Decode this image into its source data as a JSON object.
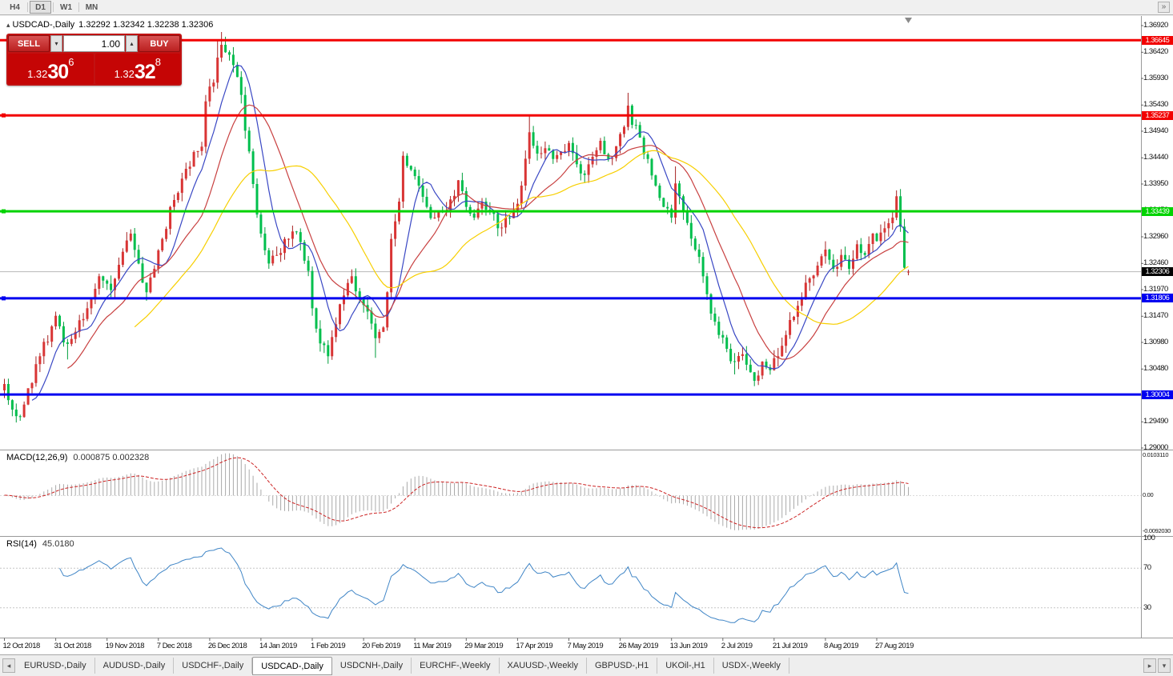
{
  "toolbar": {
    "timeframes": [
      "H4",
      "D1",
      "W1",
      "MN"
    ],
    "active_timeframe": "D1"
  },
  "icons": {
    "triangle_up": "▴",
    "chevron_down": "▾",
    "chevron_up": "▴",
    "arrow_left": "◂",
    "arrow_right": "▸",
    "overflow": "»"
  },
  "trade_panel": {
    "sell_label": "SELL",
    "buy_label": "BUY",
    "volume": "1.00",
    "sell_price": {
      "prefix": "1.32",
      "big": "30",
      "sup": "6"
    },
    "buy_price": {
      "prefix": "1.32",
      "big": "32",
      "sup": "8"
    }
  },
  "tabs": [
    "EURUSD-,Daily",
    "AUDUSD-,Daily",
    "USDCHF-,Daily",
    "USDCAD-,Daily",
    "USDCNH-,Daily",
    "EURCHF-,Weekly",
    "XAUUSD-,Weekly",
    "GBPUSD-,H1",
    "UKOil-,H1",
    "USDX-,Weekly"
  ],
  "active_tab": "USDCAD-,Daily",
  "chart_data": {
    "type": "candlestick",
    "symbol": "USDCAD-",
    "timeframe": "Daily",
    "symbol_text": "USDCAD-,Daily",
    "ohlc_text": "1.32292 1.32342 1.32238 1.32306",
    "current": {
      "open": 1.32292,
      "high": 1.32342,
      "low": 1.32238,
      "close": 1.32306
    },
    "bid_tag": "1.32306",
    "bars_total": 230,
    "noise_seed": 11,
    "colors": {
      "bull": "#d93535",
      "bull_wick": "#a82222",
      "bear": "#00bf4d",
      "bear_wick": "#009e3c"
    },
    "close_anchors": [
      [
        0,
        1.302
      ],
      [
        2,
        1.2972
      ],
      [
        4,
        1.2958
      ],
      [
        6,
        1.3012
      ],
      [
        9,
        1.3072
      ],
      [
        12,
        1.3128
      ],
      [
        13,
        1.3148
      ],
      [
        15,
        1.3098
      ],
      [
        18,
        1.3118
      ],
      [
        21,
        1.3162
      ],
      [
        24,
        1.3222
      ],
      [
        27,
        1.3196
      ],
      [
        30,
        1.3268
      ],
      [
        32,
        1.3302
      ],
      [
        34,
        1.3246
      ],
      [
        36,
        1.3192
      ],
      [
        38,
        1.3236
      ],
      [
        40,
        1.3292
      ],
      [
        42,
        1.3352
      ],
      [
        45,
        1.3405
      ],
      [
        48,
        1.3455
      ],
      [
        50,
        1.3465
      ],
      [
        51,
        1.355
      ],
      [
        53,
        1.3585
      ],
      [
        54,
        1.3632
      ],
      [
        55,
        1.3656
      ],
      [
        56,
        1.3642
      ],
      [
        58,
        1.3618
      ],
      [
        60,
        1.3562
      ],
      [
        61,
        1.3495
      ],
      [
        63,
        1.3395
      ],
      [
        65,
        1.3302
      ],
      [
        67,
        1.3246
      ],
      [
        69,
        1.3262
      ],
      [
        71,
        1.3292
      ],
      [
        73,
        1.3306
      ],
      [
        75,
        1.3286
      ],
      [
        77,
        1.3232
      ],
      [
        78,
        1.3162
      ],
      [
        80,
        1.3096
      ],
      [
        82,
        1.3072
      ],
      [
        84,
        1.3132
      ],
      [
        86,
        1.3186
      ],
      [
        88,
        1.3222
      ],
      [
        90,
        1.3182
      ],
      [
        92,
        1.3156
      ],
      [
        94,
        1.3106
      ],
      [
        96,
        1.3126
      ],
      [
        97,
        1.3192
      ],
      [
        98,
        1.3292
      ],
      [
        100,
        1.3362
      ],
      [
        101,
        1.3448
      ],
      [
        103,
        1.3422
      ],
      [
        105,
        1.3392
      ],
      [
        107,
        1.3352
      ],
      [
        109,
        1.3332
      ],
      [
        111,
        1.3342
      ],
      [
        113,
        1.3366
      ],
      [
        115,
        1.3402
      ],
      [
        117,
        1.3352
      ],
      [
        119,
        1.3332
      ],
      [
        121,
        1.3362
      ],
      [
        123,
        1.3342
      ],
      [
        125,
        1.3312
      ],
      [
        127,
        1.3332
      ],
      [
        129,
        1.3346
      ],
      [
        131,
        1.3392
      ],
      [
        133,
        1.3492
      ],
      [
        135,
        1.3452
      ],
      [
        137,
        1.3462
      ],
      [
        139,
        1.3442
      ],
      [
        141,
        1.3456
      ],
      [
        143,
        1.3472
      ],
      [
        145,
        1.3432
      ],
      [
        147,
        1.3412
      ],
      [
        149,
        1.3446
      ],
      [
        151,
        1.3476
      ],
      [
        153,
        1.3442
      ],
      [
        155,
        1.3466
      ],
      [
        157,
        1.3502
      ],
      [
        158,
        1.3542
      ],
      [
        159,
        1.3506
      ],
      [
        161,
        1.3482
      ],
      [
        163,
        1.3442
      ],
      [
        165,
        1.3392
      ],
      [
        167,
        1.3352
      ],
      [
        169,
        1.3332
      ],
      [
        170,
        1.3396
      ],
      [
        171,
        1.3372
      ],
      [
        173,
        1.3322
      ],
      [
        175,
        1.3272
      ],
      [
        177,
        1.3222
      ],
      [
        179,
        1.3152
      ],
      [
        181,
        1.3112
      ],
      [
        183,
        1.3086
      ],
      [
        185,
        1.3062
      ],
      [
        187,
        1.3076
      ],
      [
        189,
        1.3042
      ],
      [
        190,
        1.3026
      ],
      [
        192,
        1.3062
      ],
      [
        194,
        1.3046
      ],
      [
        196,
        1.3072
      ],
      [
        198,
        1.3112
      ],
      [
        200,
        1.3146
      ],
      [
        202,
        1.3182
      ],
      [
        204,
        1.3218
      ],
      [
        206,
        1.3242
      ],
      [
        208,
        1.3272
      ],
      [
        210,
        1.3236
      ],
      [
        212,
        1.3262
      ],
      [
        214,
        1.3236
      ],
      [
        216,
        1.3282
      ],
      [
        218,
        1.3262
      ],
      [
        220,
        1.3302
      ],
      [
        221,
        1.3288
      ],
      [
        223,
        1.3312
      ],
      [
        225,
        1.3332
      ],
      [
        226,
        1.3372
      ],
      [
        227,
        1.3315
      ],
      [
        228,
        1.3238
      ],
      [
        229,
        1.32306
      ]
    ],
    "spikes": {
      "highs": [
        [
          51,
          1.3562
        ],
        [
          54,
          1.3665
        ],
        [
          55,
          1.368
        ],
        [
          56,
          1.3668
        ],
        [
          101,
          1.3456
        ],
        [
          133,
          1.3522
        ],
        [
          158,
          1.3566
        ],
        [
          170,
          1.3428
        ],
        [
          226,
          1.3383
        ]
      ],
      "lows": [
        [
          3,
          1.2949
        ],
        [
          16,
          1.3066
        ],
        [
          82,
          1.3058
        ],
        [
          94,
          1.3069
        ],
        [
          185,
          1.3038
        ],
        [
          190,
          1.3016
        ]
      ]
    },
    "moving_averages": [
      {
        "period": 8,
        "color": "#3947c4"
      },
      {
        "period": 17,
        "color": "#c84040"
      },
      {
        "period": 34,
        "color": "#f7cf00"
      }
    ],
    "hlines": [
      {
        "label": "1.36645",
        "price": 1.36645,
        "color": "#f20000",
        "width": 3,
        "handle": false
      },
      {
        "label": "1.35237",
        "price": 1.35237,
        "color": "#f20000",
        "width": 3,
        "handle": true
      },
      {
        "label": "1.33439",
        "price": 1.33439,
        "color": "#00d300",
        "width": 3,
        "handle": true
      },
      {
        "label": "1.31806",
        "price": 1.31806,
        "color": "#0000f0",
        "width": 3,
        "handle": true
      },
      {
        "label": "1.30004",
        "price": 1.30004,
        "color": "#0000f0",
        "width": 3,
        "handle": false
      }
    ],
    "price_axis": [
      "1.36920",
      "1.36420",
      "1.35930",
      "1.35430",
      "1.34940",
      "1.34440",
      "1.33950",
      "1.33450",
      "1.32960",
      "1.32460",
      "1.31970",
      "1.31470",
      "1.30980",
      "1.30480",
      "1.29990",
      "1.29490",
      "1.29000"
    ],
    "macd": {
      "title": "MACD(12,26,9)",
      "values_text": "0.000875 0.002328",
      "fast": 12,
      "slow": 26,
      "signal": 9,
      "axis": [
        {
          "v": 0.010311,
          "t": "0.0103110"
        },
        {
          "v": 0,
          "t": "0.00"
        },
        {
          "v": -0.009203,
          "t": "-0.0092030"
        }
      ]
    },
    "rsi": {
      "title": "RSI(14)",
      "value_text": "45.0180",
      "period": 14,
      "levels": [
        70,
        30
      ],
      "axis": [
        {
          "v": 100,
          "t": "100"
        },
        {
          "v": 70,
          "t": "70"
        },
        {
          "v": 30,
          "t": "30"
        }
      ]
    },
    "date_labels": [
      [
        0,
        "12 Oct 2018"
      ],
      [
        13,
        "31 Oct 2018"
      ],
      [
        26,
        "19 Nov 2018"
      ],
      [
        39,
        "7 Dec 2018"
      ],
      [
        52,
        "26 Dec 2018"
      ],
      [
        65,
        "14 Jan 2019"
      ],
      [
        78,
        "1 Feb 2019"
      ],
      [
        91,
        "20 Feb 2019"
      ],
      [
        104,
        "11 Mar 2019"
      ],
      [
        117,
        "29 Mar 2019"
      ],
      [
        130,
        "17 Apr 2019"
      ],
      [
        143,
        "7 May 2019"
      ],
      [
        156,
        "26 May 2019"
      ],
      [
        169,
        "13 Jun 2019"
      ],
      [
        182,
        "2 Jul 2019"
      ],
      [
        195,
        "21 Jul 2019"
      ],
      [
        208,
        "8 Aug 2019"
      ],
      [
        221,
        "27 Aug 2019"
      ]
    ]
  }
}
